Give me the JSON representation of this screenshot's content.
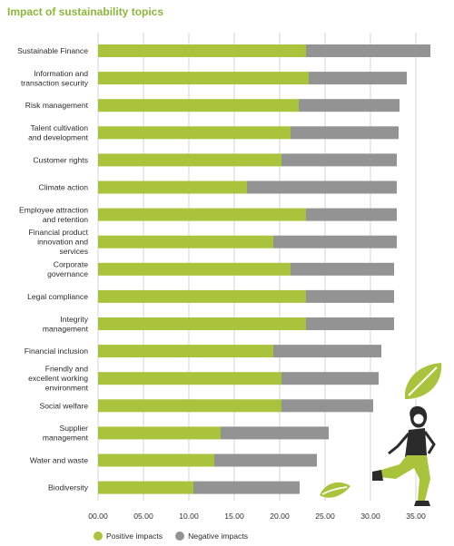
{
  "chart_data": {
    "type": "bar",
    "orientation": "horizontal",
    "stacked": true,
    "title": "Impact of sustainability topics",
    "categories": [
      "Sustainable Finance",
      "Information and transaction security",
      "Risk management",
      "Talent cultivation and development",
      "Customer rights",
      "Climate action",
      "Employee attraction and retention",
      "Financial product innovation and services",
      "Corporate governance",
      "Legal compliance",
      "Integrity management",
      "Financial inclusion",
      "Friendly and excellent working environment",
      "Social welfare",
      "Supplier management",
      "Water and waste",
      "Biodiversity"
    ],
    "category_lines": [
      [
        "Sustainable Finance"
      ],
      [
        "Information and",
        "transaction security"
      ],
      [
        "Risk management"
      ],
      [
        "Talent cultivation",
        "and development"
      ],
      [
        "Customer rights"
      ],
      [
        "Climate action"
      ],
      [
        "Employee attraction",
        "and retention"
      ],
      [
        "Financial product",
        "innovation and",
        "services"
      ],
      [
        "Corporate",
        "governance"
      ],
      [
        "Legal compliance"
      ],
      [
        "Integrity",
        "management"
      ],
      [
        "Financial inclusion"
      ],
      [
        "Friendly and",
        "excellent working",
        "environment"
      ],
      [
        "Social welfare"
      ],
      [
        "Supplier",
        "management"
      ],
      [
        "Water and waste"
      ],
      [
        "Biodiversity"
      ]
    ],
    "series": [
      {
        "name": "Positive impacts",
        "color": "#a9c43c",
        "values": [
          22.9,
          23.2,
          22.1,
          21.2,
          20.2,
          16.4,
          22.9,
          19.3,
          21.2,
          22.9,
          22.9,
          19.3,
          20.2,
          20.2,
          13.5,
          12.8,
          10.5
        ]
      },
      {
        "name": "Negative impacts",
        "color": "#939393",
        "values": [
          13.7,
          10.8,
          11.1,
          11.9,
          12.7,
          16.5,
          10.0,
          13.6,
          11.4,
          9.7,
          9.7,
          11.9,
          10.7,
          10.1,
          11.9,
          11.3,
          11.7
        ]
      }
    ],
    "xlim": [
      0,
      35
    ],
    "xticks": [
      "00.00",
      "05.00",
      "10.00",
      "15.00",
      "20.00",
      "25.00",
      "30.00",
      "35.00"
    ],
    "xtick_values": [
      0,
      5,
      10,
      15,
      20,
      25,
      30,
      35
    ],
    "grid": true,
    "legend_position": "bottom-left",
    "colors": {
      "title": "#8cb63c",
      "positive": "#a9c43c",
      "negative": "#939393",
      "grid": "#c9c9c9"
    }
  }
}
